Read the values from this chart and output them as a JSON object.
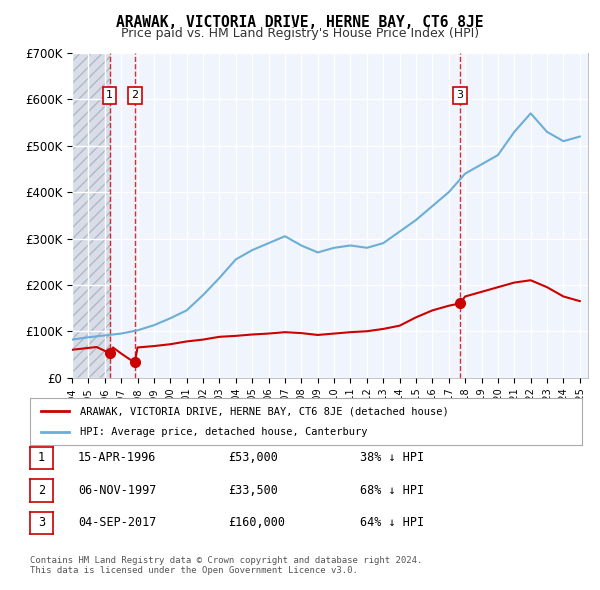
{
  "title": "ARAWAK, VICTORIA DRIVE, HERNE BAY, CT6 8JE",
  "subtitle": "Price paid vs. HM Land Registry's House Price Index (HPI)",
  "ylabel": "",
  "xlabel": "",
  "ylim": [
    0,
    700000
  ],
  "yticks": [
    0,
    100000,
    200000,
    300000,
    400000,
    500000,
    600000,
    700000
  ],
  "ytick_labels": [
    "£0",
    "£100K",
    "£200K",
    "£300K",
    "£400K",
    "£500K",
    "£600K",
    "£700K"
  ],
  "xlim_start": 1994.0,
  "xlim_end": 2025.5,
  "bg_color": "#e8eef8",
  "plot_bg": "#f0f4fc",
  "hatch_end_year": 1996.3,
  "transactions": [
    {
      "label": "1",
      "date": "15-APR-1996",
      "year": 1996.29,
      "price": 53000
    },
    {
      "label": "2",
      "date": "06-NOV-1997",
      "year": 1997.84,
      "price": 33500
    },
    {
      "label": "3",
      "date": "04-SEP-2017",
      "year": 2017.68,
      "price": 160000
    }
  ],
  "legend_line1": "ARAWAK, VICTORIA DRIVE, HERNE BAY, CT6 8JE (detached house)",
  "legend_line2": "HPI: Average price, detached house, Canterbury",
  "footnote": "Contains HM Land Registry data © Crown copyright and database right 2024.\nThis data is licensed under the Open Government Licence v3.0.",
  "table": [
    {
      "num": "1",
      "date": "15-APR-1996",
      "price": "£53,000",
      "pct": "38% ↓ HPI"
    },
    {
      "num": "2",
      "date": "06-NOV-1997",
      "price": "£33,500",
      "pct": "68% ↓ HPI"
    },
    {
      "num": "3",
      "date": "04-SEP-2017",
      "price": "£160,000",
      "pct": "64% ↓ HPI"
    }
  ],
  "hpi_years": [
    1994,
    1995,
    1996,
    1997,
    1998,
    1999,
    2000,
    2001,
    2002,
    2003,
    2004,
    2005,
    2006,
    2007,
    2008,
    2009,
    2010,
    2011,
    2012,
    2013,
    2014,
    2015,
    2016,
    2017,
    2018,
    2019,
    2020,
    2021,
    2022,
    2023,
    2024,
    2025
  ],
  "hpi_values": [
    82000,
    87000,
    91000,
    95000,
    102000,
    113000,
    128000,
    145000,
    178000,
    215000,
    255000,
    275000,
    290000,
    305000,
    285000,
    270000,
    280000,
    285000,
    280000,
    290000,
    315000,
    340000,
    370000,
    400000,
    440000,
    460000,
    480000,
    530000,
    570000,
    530000,
    510000,
    520000
  ],
  "price_years": [
    1994.0,
    1994.5,
    1995.0,
    1995.5,
    1996.29,
    1996.5,
    1997.0,
    1997.5,
    1997.84,
    1998.0,
    1999.0,
    2000.0,
    2001.0,
    2002.0,
    2003.0,
    2004.0,
    2005.0,
    2006.0,
    2007.0,
    2008.0,
    2009.0,
    2010.0,
    2011.0,
    2012.0,
    2013.0,
    2014.0,
    2015.0,
    2016.0,
    2017.0,
    2017.68,
    2018.0,
    2019.0,
    2020.0,
    2021.0,
    2022.0,
    2023.0,
    2024.0,
    2025.0
  ],
  "price_values": [
    60000,
    62000,
    64000,
    66000,
    53000,
    65000,
    52000,
    40000,
    33500,
    65000,
    68000,
    72000,
    78000,
    82000,
    88000,
    90000,
    93000,
    95000,
    98000,
    96000,
    92000,
    95000,
    98000,
    100000,
    105000,
    112000,
    130000,
    145000,
    155000,
    160000,
    175000,
    185000,
    195000,
    205000,
    210000,
    195000,
    175000,
    165000
  ]
}
